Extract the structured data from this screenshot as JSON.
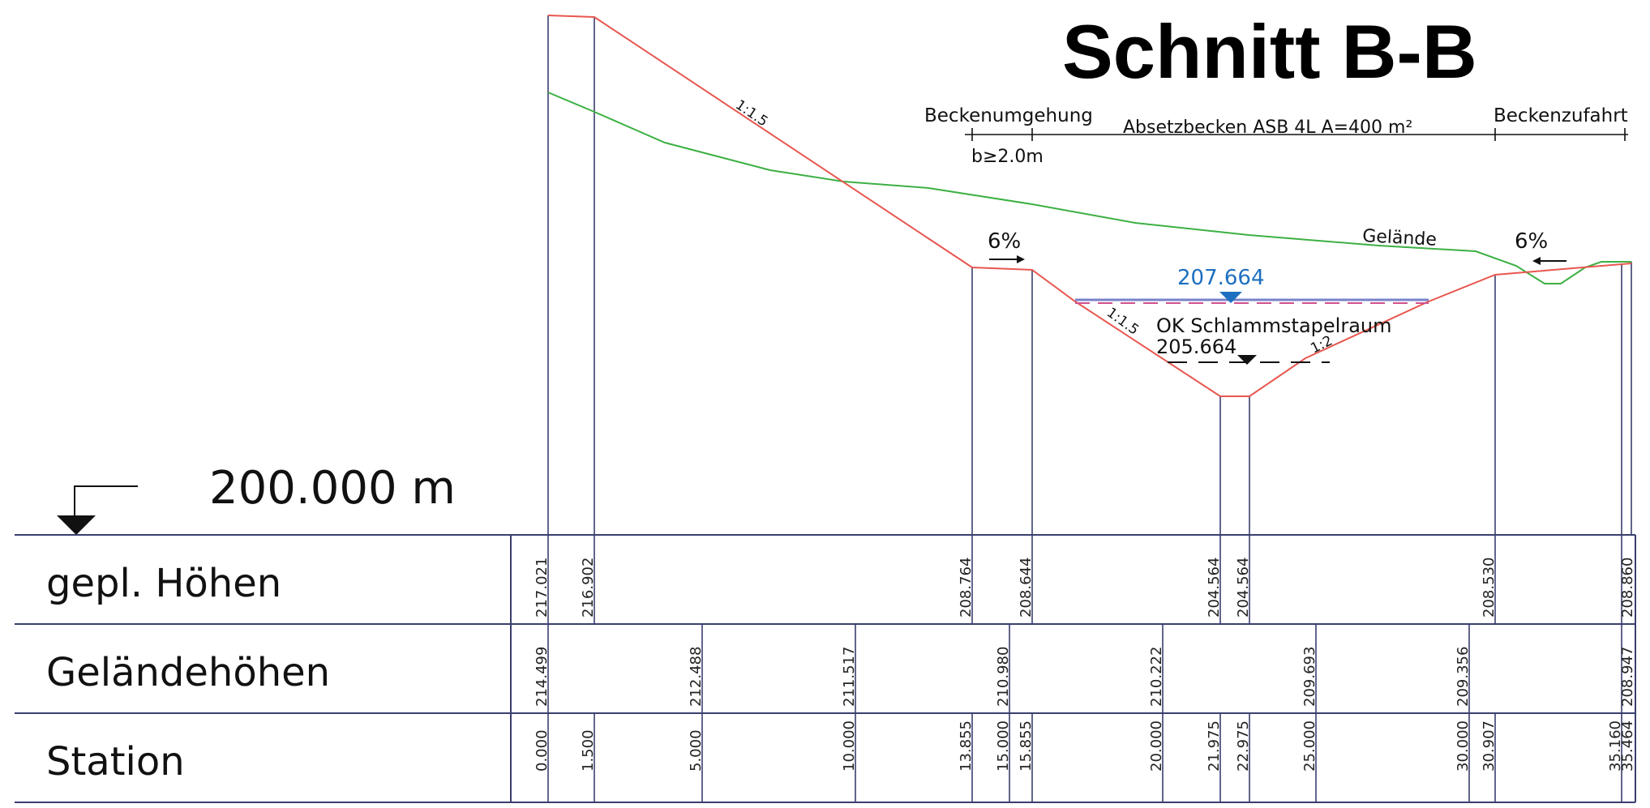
{
  "title": "Schnitt B-B",
  "datum": {
    "label": "200.000 m"
  },
  "labels": {
    "beckenumgehung": "Beckenumgehung",
    "breite": "b≥2.0m",
    "absetzbecken": "Absetzbecken ASB 4L A=400 m²",
    "beckenzufahrt": "Beckenzufahrt",
    "gelaende": "Gelände",
    "gefaelle_left": "6%",
    "gefaelle_right": "6%",
    "slope_embankment": "1:1.5",
    "slope_basin_left": "1:1.5",
    "slope_basin_right": "1:2",
    "water_level": "207.664",
    "sludge_label": "OK Schlammstapelraum",
    "sludge_level": "205.664"
  },
  "table": {
    "rows": [
      {
        "label": "gepl. Höhen",
        "values": [
          "217.021",
          "216.902",
          "208.764",
          "208.644",
          "204.564",
          "204.564",
          "208.530",
          "208.860"
        ]
      },
      {
        "label": "Geländehöhen",
        "values": [
          "214.499",
          "212.488",
          "211.517",
          "210.980",
          "210.222",
          "209.693",
          "209.356",
          "208.947"
        ]
      },
      {
        "label": "Station",
        "values": [
          "0.000",
          "1.500",
          "5.000",
          "10.000",
          "13.855",
          "15.000",
          "15.855",
          "20.000",
          "21.975",
          "22.975",
          "25.000",
          "30.000",
          "30.907",
          "35.160",
          "35.464"
        ]
      }
    ]
  },
  "colors": {
    "design_line": "#e8574f",
    "terrain_line": "#3cb043",
    "water_level": "#1e6fc0",
    "water_line": "#7a82c8",
    "water_dash": "#d0508c",
    "frame": "#3a3f6e"
  }
}
